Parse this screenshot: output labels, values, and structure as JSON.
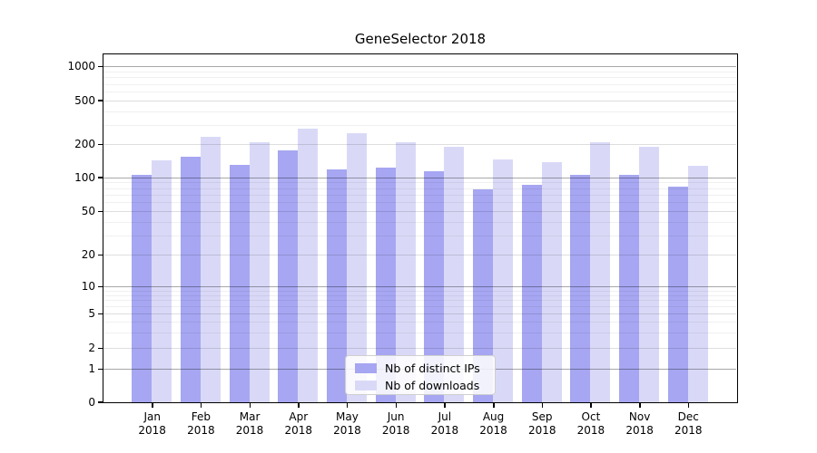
{
  "chart_data": {
    "type": "bar",
    "title": "GeneSelector 2018",
    "categories": [
      "Jan",
      "Feb",
      "Mar",
      "Apr",
      "May",
      "Jun",
      "Jul",
      "Aug",
      "Sep",
      "Oct",
      "Nov",
      "Dec"
    ],
    "year_label": "2018",
    "series": [
      {
        "name": "Nb of distinct IPs",
        "color": "#a6a6f2",
        "values": [
          104,
          155,
          130,
          176,
          118,
          123,
          114,
          78,
          86,
          105,
          104,
          83
        ]
      },
      {
        "name": "Nb of downloads",
        "color": "#d9d9f7",
        "values": [
          142,
          232,
          209,
          278,
          252,
          207,
          191,
          146,
          137,
          208,
          189,
          126
        ]
      }
    ],
    "y_ticks": [
      0,
      1,
      2,
      5,
      10,
      20,
      50,
      100,
      200,
      500,
      1000
    ],
    "y_scale": "symlog",
    "ylim": [
      0,
      1300
    ],
    "xlabel": "",
    "ylabel": "",
    "grid": true,
    "legend_position": "lower center",
    "colors": {
      "axis": "#000000",
      "grid_major": "#aaaaaa",
      "grid_minor": "#ececec",
      "background": "#ffffff"
    }
  }
}
